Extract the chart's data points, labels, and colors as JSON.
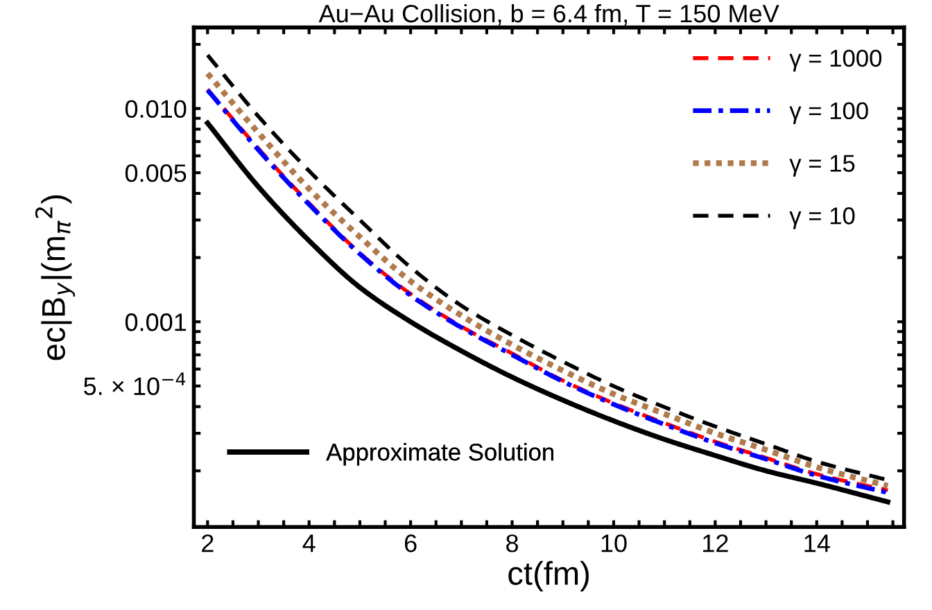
{
  "chart_data": {
    "type": "line",
    "title": "Au−Au Collision, b = 6.4 fm, T = 150 MeV",
    "xlabel": "ct(fm)",
    "ylabel": "ec|B$_{y}$|(m$_{π}$$^{2}$)",
    "x": [
      2,
      3,
      4,
      5,
      6,
      7,
      8,
      9,
      10,
      11,
      12,
      13,
      14,
      15.4
    ],
    "series": [
      {
        "name": "γ = 1000",
        "color": "#ff0000",
        "line_style": "dashed",
        "values": [
          0.0123,
          0.0065,
          0.0036,
          0.0021,
          0.00135,
          0.00095,
          0.00071,
          0.00053,
          0.000415,
          0.000335,
          0.000274,
          0.00023,
          0.000193,
          0.000162
        ]
      },
      {
        "name": "γ = 100",
        "color": "#0000ff",
        "line_style": "dashdot",
        "values": [
          0.0122,
          0.0064,
          0.00355,
          0.00208,
          0.00133,
          0.00094,
          0.0007,
          0.000525,
          0.00041,
          0.00033,
          0.00027,
          0.000227,
          0.00019,
          0.000158
        ]
      },
      {
        "name": "γ = 15",
        "color": "#b07a4a",
        "line_style": "dotted",
        "values": [
          0.0146,
          0.0077,
          0.0042,
          0.0025,
          0.00155,
          0.00107,
          0.00078,
          0.00059,
          0.000458,
          0.00037,
          0.0003,
          0.000251,
          0.000208,
          0.00017
        ]
      },
      {
        "name": "γ = 10",
        "color": "#000000",
        "line_style": "dashed",
        "values": [
          0.0178,
          0.0092,
          0.0051,
          0.003,
          0.0018,
          0.00119,
          0.000865,
          0.00065,
          0.000499,
          0.000398,
          0.000323,
          0.000267,
          0.000221,
          0.000181
        ]
      },
      {
        "name": "Approximate Solution",
        "color": "#000000",
        "line_style": "solid",
        "values": [
          0.00855,
          0.0043,
          0.0024,
          0.00145,
          0.001,
          0.00073,
          0.00055,
          0.000429,
          0.000343,
          0.000281,
          0.000236,
          0.0002,
          0.000175,
          0.000143
        ]
      }
    ],
    "log": "y",
    "legend": "top right",
    "grid": false,
    "marker": "none",
    "xlim": [
      1.73,
      15.72
    ],
    "ylim": [
      0.000109,
      0.024
    ],
    "xticks": [
      2,
      {
        "value": 2.5,
        "label": null
      },
      {
        "value": 3,
        "label": null
      },
      {
        "value": 3.5,
        "label": null
      },
      4,
      {
        "value": 4.5,
        "label": null
      },
      {
        "value": 5,
        "label": null
      },
      {
        "value": 5.5,
        "label": null
      },
      6,
      {
        "value": 6.5,
        "label": null
      },
      {
        "value": 7,
        "label": null
      },
      {
        "value": 7.5,
        "label": null
      },
      8,
      {
        "value": 8.5,
        "label": null
      },
      {
        "value": 9,
        "label": null
      },
      {
        "value": 9.5,
        "label": null
      },
      10,
      {
        "value": 10.5,
        "label": null
      },
      {
        "value": 11,
        "label": null
      },
      {
        "value": 11.5,
        "label": null
      },
      12,
      {
        "value": 12.5,
        "label": null
      },
      {
        "value": 13,
        "label": null
      },
      {
        "value": 13.5,
        "label": null
      },
      14,
      {
        "value": 14.5,
        "label": null
      },
      {
        "value": 15,
        "label": null
      },
      {
        "value": 15.5,
        "label": null
      }
    ],
    "yticks": [
      {
        "value": 0.0002,
        "label": null
      },
      {
        "value": 0.0003,
        "label": null
      },
      {
        "value": 0.0004,
        "label": null
      },
      {
        "value": 0.0005,
        "label": "5. × 10$^{−4}$"
      },
      {
        "value": 0.0006,
        "label": null
      },
      {
        "value": 0.0007,
        "label": null
      },
      {
        "value": 0.0008,
        "label": null
      },
      {
        "value": 0.0009,
        "label": null
      },
      {
        "value": 0.001,
        "label": "0.001"
      },
      {
        "value": 0.002,
        "label": null
      },
      {
        "value": 0.003,
        "label": null
      },
      {
        "value": 0.004,
        "label": null
      },
      {
        "value": 0.005,
        "label": "0.005"
      },
      {
        "value": 0.006,
        "label": null
      },
      {
        "value": 0.007,
        "label": null
      },
      {
        "value": 0.008,
        "label": null
      },
      {
        "value": 0.009,
        "label": null
      },
      {
        "value": 0.01,
        "label": "0.010"
      },
      {
        "value": 0.02,
        "label": null
      }
    ]
  }
}
